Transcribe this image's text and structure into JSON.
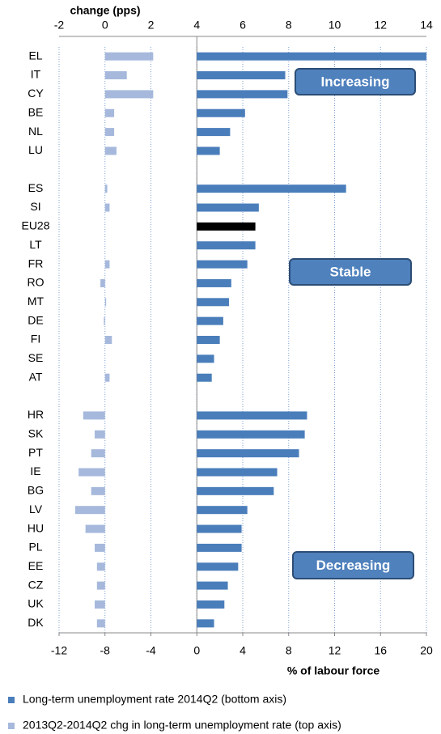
{
  "chart_data": {
    "type": "bar",
    "orientation": "horizontal",
    "x2label": "change (pps)",
    "xlabel": "% of labour force",
    "categories": [
      "EL",
      "IT",
      "CY",
      "BE",
      "NL",
      "LU",
      null,
      "ES",
      "SI",
      "EU28",
      "LT",
      "FR",
      "RO",
      "MT",
      "DE",
      "FI",
      "SE",
      "AT",
      null,
      "HR",
      "SK",
      "PT",
      "IE",
      "BG",
      "LV",
      "HU",
      "PL",
      "EE",
      "CZ",
      "UK",
      "DK"
    ],
    "series": [
      {
        "name": "Long-term unemployment rate 2014Q2 (bottom axis)",
        "color": "#4a7ebb",
        "axis": "x",
        "point_colors": {
          "EU28": "#000000"
        },
        "values": [
          20,
          7.7,
          7.9,
          4.2,
          2.9,
          2.0,
          null,
          13.0,
          5.4,
          5.1,
          5.1,
          4.4,
          3.0,
          2.8,
          2.3,
          2.0,
          1.5,
          1.3,
          null,
          9.6,
          9.4,
          8.9,
          7.0,
          6.7,
          4.4,
          3.9,
          3.9,
          3.6,
          2.7,
          2.4,
          1.5
        ]
      },
      {
        "name": "2013Q2-2014Q2 chg in long-term unemployment rate (top axis)",
        "color": "#a6b9dc",
        "axis": "x2",
        "values": [
          2.1,
          0.95,
          2.1,
          0.4,
          0.4,
          0.5,
          null,
          0.1,
          0.2,
          null,
          null,
          0.2,
          -0.2,
          0.05,
          -0.05,
          0.3,
          null,
          0.2,
          null,
          -0.95,
          -0.45,
          -0.6,
          -1.15,
          -0.6,
          -1.3,
          -0.85,
          -0.45,
          -0.35,
          -0.35,
          -0.45,
          -0.35
        ]
      }
    ],
    "xlim": [
      -12,
      20
    ],
    "xticks": [
      -12,
      -8,
      -4,
      0,
      4,
      8,
      12,
      16,
      20
    ],
    "x2lim": [
      -2,
      14
    ],
    "x2ticks": [
      -2,
      0,
      2,
      4,
      6,
      8,
      10,
      12,
      14
    ],
    "grid": true,
    "legend": "bottom",
    "annotations": [
      {
        "text": "Increasing"
      },
      {
        "text": "Stable"
      },
      {
        "text": "Decreasing"
      }
    ]
  }
}
